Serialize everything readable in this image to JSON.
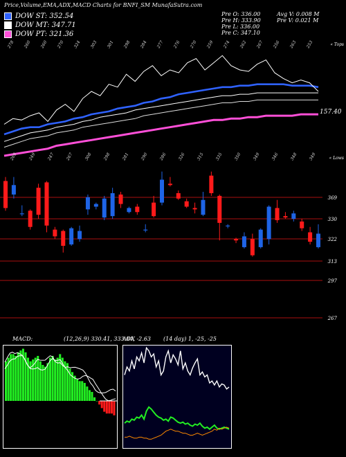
{
  "header": {
    "title": "Price,Volume,EMA,ADX,MACD Charts for BNFI_SM MunafaSutra.com"
  },
  "legend": [
    {
      "label": "DOW ST: 352.54",
      "color": "#2f62ff"
    },
    {
      "label": "DOW MT: 347.71",
      "color": "#ffffff"
    },
    {
      "label": "DOW PT: 321.36",
      "color": "#ff4fd8"
    }
  ],
  "stats": {
    "pre_o": "Pre   O: 336.00",
    "pre_h": "Pre   H: 333.90",
    "pre_l": "Pre   L: 336.00",
    "pre_c": "Pre   C: 347.10",
    "avg_v": "Avg V: 0.008 M",
    "pre_v": "Pre   V: 0.021 M"
  },
  "colors": {
    "up": "#1e64e6",
    "down": "#ff1a1a",
    "ema_fast": "#2f62ff",
    "ema_long": "#ff4fd8",
    "macd_hist": "#22ee22",
    "adx_green": "#22ee22",
    "adx_orange": "#ff8a00",
    "red_line": "#aa1111"
  },
  "chart_data": [
    {
      "type": "line",
      "title": "",
      "top_label": "« Tops",
      "bottom_label": "« Lows",
      "current_price_label": "157.40",
      "top_tick_labels": [
        "278",
        "260",
        "260",
        "270",
        "324",
        "303",
        "301",
        "298",
        "284",
        "277",
        "276",
        "270",
        "259",
        "274",
        "262",
        "267",
        "256",
        "263",
        "253"
      ],
      "low_tick_labels": [
        "269",
        "249",
        "247",
        "267",
        "308",
        "298",
        "281",
        "290",
        "286",
        "326",
        "315",
        "335",
        "350",
        "349",
        "346",
        "348",
        "349"
      ],
      "series": [
        {
          "values": [
            155,
            157,
            159,
            160,
            160,
            162,
            163,
            164,
            166,
            167,
            169,
            170,
            171,
            173,
            174,
            175,
            177,
            178,
            180,
            181,
            183,
            184,
            185,
            186,
            187,
            188,
            188,
            189,
            189,
            190,
            190,
            190,
            190,
            189,
            189,
            189,
            188
          ]
        },
        {
          "values": [
            150,
            152,
            154,
            156,
            157,
            158,
            160,
            161,
            162,
            164,
            165,
            167,
            168,
            169,
            170,
            172,
            173,
            174,
            175,
            176,
            177,
            178,
            179,
            180,
            181,
            182,
            182,
            183,
            183,
            184,
            184,
            184,
            184,
            184,
            184,
            184,
            184
          ]
        },
        {
          "values": [
            146,
            148,
            150,
            152,
            153,
            154,
            156,
            157,
            158,
            160,
            161,
            162,
            163,
            164,
            165,
            166,
            168,
            169,
            170,
            171,
            172,
            173,
            174,
            175,
            176,
            177,
            177,
            178,
            178,
            179,
            179,
            179,
            179,
            179,
            179,
            179,
            179
          ]
        },
        {
          "values": [
            140,
            141,
            142,
            143,
            144,
            145,
            147,
            148,
            149,
            150,
            151,
            152,
            153,
            154,
            155,
            156,
            157,
            158,
            159,
            160,
            161,
            162,
            163,
            164,
            165,
            165,
            166,
            166,
            167,
            167,
            168,
            168,
            168,
            168,
            169,
            169,
            169
          ]
        },
        {
          "values": [
            162,
            166,
            165,
            168,
            170,
            164,
            172,
            176,
            171,
            180,
            185,
            182,
            190,
            188,
            197,
            192,
            199,
            203,
            196,
            200,
            198,
            205,
            208,
            200,
            205,
            210,
            203,
            200,
            199,
            204,
            207,
            198,
            194,
            191,
            193,
            191,
            185
          ]
        }
      ]
    },
    {
      "type": "bar",
      "title": "",
      "candles": [
        {
          "o": 369,
          "c": 349,
          "h": 372,
          "l": 347
        },
        {
          "o": 359,
          "c": 366,
          "h": 372,
          "l": 356
        },
        {
          "o": 345,
          "c": 345,
          "h": 351,
          "l": 343
        },
        {
          "o": 347,
          "c": 335,
          "h": 348,
          "l": 333
        },
        {
          "o": 364,
          "c": 344,
          "h": 367,
          "l": 341
        },
        {
          "o": 368,
          "c": 336,
          "h": 369,
          "l": 331
        },
        {
          "o": 333,
          "c": 328,
          "h": 335,
          "l": 326
        },
        {
          "o": 332,
          "c": 321,
          "h": 333,
          "l": 316
        },
        {
          "o": 322,
          "c": 334,
          "h": 335,
          "l": 321
        },
        {
          "o": 326,
          "c": 332,
          "h": 336,
          "l": 324
        },
        {
          "o": 348,
          "c": 357,
          "h": 359,
          "l": 344
        },
        {
          "o": 350,
          "c": 352,
          "h": 353,
          "l": 348
        },
        {
          "o": 342,
          "c": 356,
          "h": 358,
          "l": 340
        },
        {
          "o": 343,
          "c": 360,
          "h": 364,
          "l": 341
        },
        {
          "o": 359,
          "c": 352,
          "h": 361,
          "l": 349
        },
        {
          "o": 346,
          "c": 349,
          "h": 350,
          "l": 345
        },
        {
          "o": 350,
          "c": 346,
          "h": 352,
          "l": 344
        },
        {
          "o": 333,
          "c": 333,
          "h": 337,
          "l": 331
        },
        {
          "o": 353,
          "c": 343,
          "h": 358,
          "l": 342
        },
        {
          "o": 353,
          "c": 370,
          "h": 376,
          "l": 351
        },
        {
          "o": 367,
          "c": 366,
          "h": 372,
          "l": 365
        },
        {
          "o": 360,
          "c": 356,
          "h": 362,
          "l": 355
        },
        {
          "o": 354,
          "c": 350,
          "h": 356,
          "l": 349
        },
        {
          "o": 349,
          "c": 348,
          "h": 353,
          "l": 345
        },
        {
          "o": 344,
          "c": 355,
          "h": 361,
          "l": 343
        },
        {
          "o": 373,
          "c": 360,
          "h": 376,
          "l": 358
        },
        {
          "o": 358,
          "c": 338,
          "h": 359,
          "l": 325
        },
        {
          "o": 336,
          "c": 336,
          "h": 337,
          "l": 334
        },
        {
          "o": 326,
          "c": 325,
          "h": 327,
          "l": 323
        },
        {
          "o": 320,
          "c": 328,
          "h": 331,
          "l": 319
        },
        {
          "o": 326,
          "c": 314,
          "h": 330,
          "l": 313
        },
        {
          "o": 320,
          "c": 333,
          "h": 334,
          "l": 319
        },
        {
          "o": 326,
          "c": 350,
          "h": 351,
          "l": 322
        },
        {
          "o": 349,
          "c": 340,
          "h": 355,
          "l": 338
        },
        {
          "o": 343,
          "c": 342,
          "h": 346,
          "l": 341
        },
        {
          "o": 341,
          "c": 345,
          "h": 347,
          "l": 339
        },
        {
          "o": 339,
          "c": 334,
          "h": 341,
          "l": 332
        },
        {
          "o": 331,
          "c": 324,
          "h": 335,
          "l": 322
        },
        {
          "o": 320,
          "c": 330,
          "h": 337,
          "l": 319
        }
      ],
      "hlines": [
        369,
        330,
        322,
        313,
        297,
        267
      ],
      "y_tick_labels": [
        "369",
        "330",
        "322",
        "313",
        "297",
        "267"
      ]
    },
    {
      "type": "bar",
      "title": "MACD:",
      "subtitle": "(12,26,9) 330.41, 333.04, -2.63",
      "histogram": [
        22,
        24,
        26,
        26,
        25,
        27,
        28,
        29,
        27,
        24,
        22,
        23,
        24,
        25,
        22,
        20,
        19,
        21,
        24,
        25,
        23,
        24,
        26,
        24,
        22,
        21,
        18,
        16,
        14,
        12,
        11,
        11,
        10,
        8,
        6,
        5,
        2,
        0,
        -2,
        -4,
        -6,
        -7,
        -7,
        -7,
        -8
      ]
    },
    {
      "type": "line",
      "title": "ADX",
      "subtitle": "(14 day) 1, -25, -25",
      "series": [
        {
          "values": [
            70,
            78,
            74,
            84,
            76,
            88,
            84,
            92,
            82,
            97,
            94,
            88,
            91,
            78,
            84,
            70,
            74,
            88,
            94,
            82,
            90,
            86,
            80,
            94,
            76,
            82,
            74,
            70,
            77,
            82,
            86,
            70,
            73,
            68,
            70,
            62,
            64,
            60,
            64,
            58,
            61,
            60,
            56,
            58
          ]
        },
        {
          "values": [
            22,
            24,
            23,
            26,
            25,
            28,
            27,
            30,
            26,
            34,
            38,
            36,
            33,
            30,
            28,
            27,
            25,
            26,
            24,
            28,
            27,
            25,
            23,
            22,
            23,
            21,
            22,
            20,
            19,
            21,
            20,
            22,
            19,
            17,
            18,
            16,
            18,
            20,
            17,
            16,
            17,
            18,
            17,
            16
          ]
        },
        {
          "values": [
            8,
            8,
            9,
            8,
            7,
            7,
            8,
            8,
            7,
            7,
            6,
            6,
            7,
            8,
            9,
            10,
            12,
            14,
            15,
            16,
            15,
            14,
            14,
            13,
            12,
            12,
            11,
            10,
            10,
            11,
            12,
            11,
            10,
            11,
            12,
            13,
            14,
            16,
            15,
            17,
            16,
            17,
            18,
            17
          ]
        }
      ]
    }
  ]
}
